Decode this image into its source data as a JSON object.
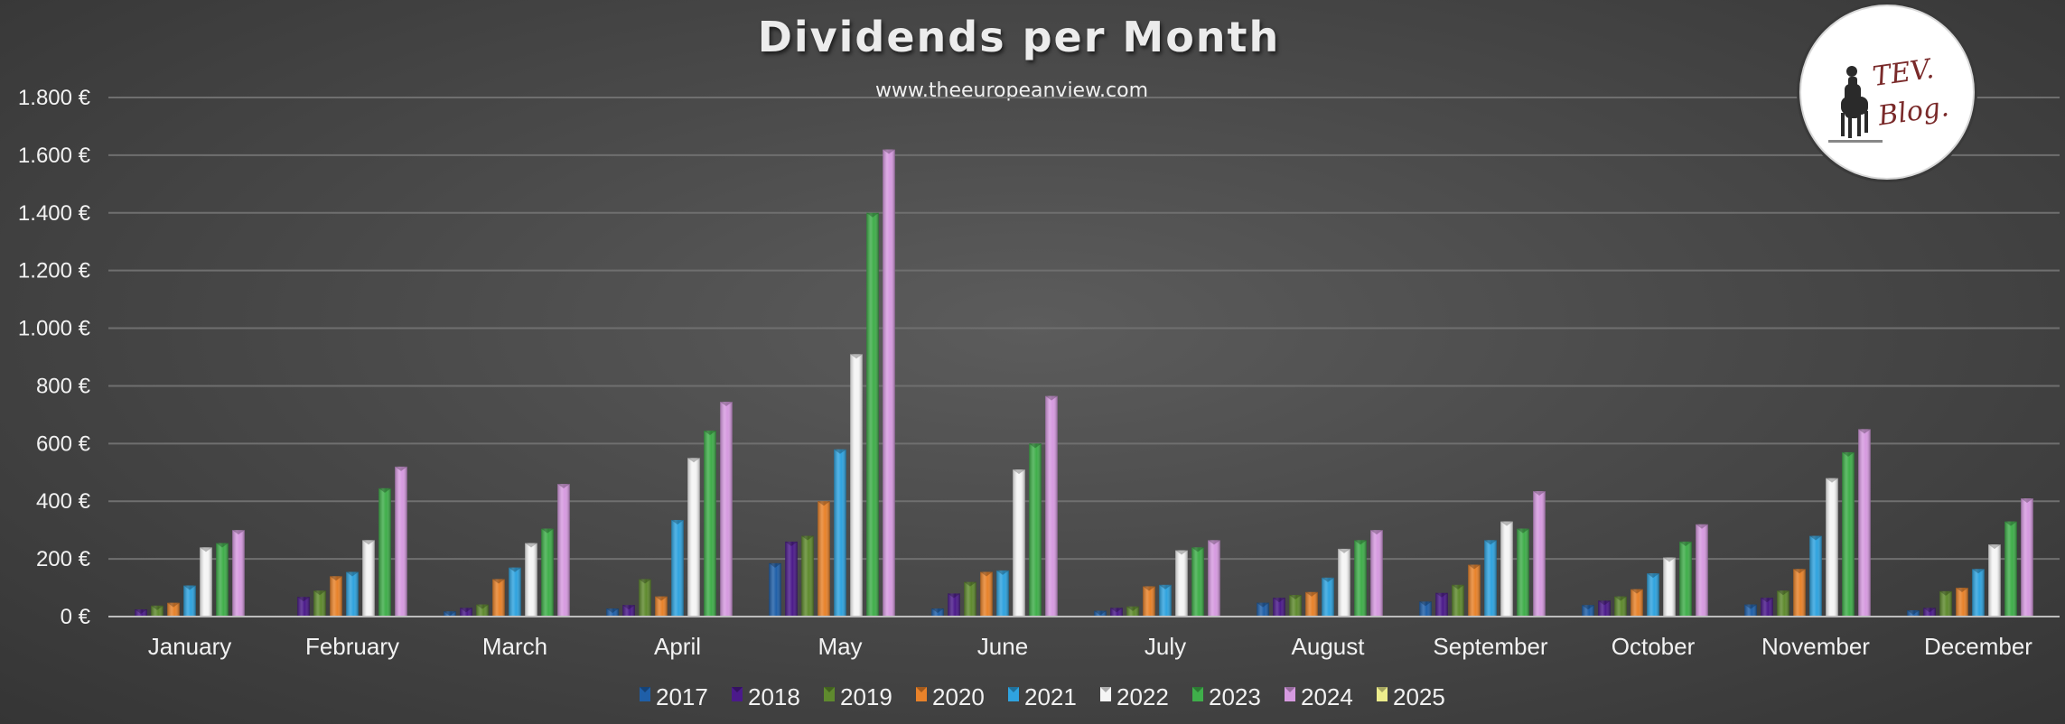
{
  "chart_data": {
    "type": "bar",
    "title": "Dividends per Month",
    "subtitle": "www.theeuropeanview.com",
    "xlabel": "",
    "ylabel": "",
    "ylim": [
      0,
      1800
    ],
    "yticks": [
      0,
      200,
      400,
      600,
      800,
      1000,
      1200,
      1400,
      1600,
      1800
    ],
    "ytick_labels": [
      "0 €",
      "200 €",
      "400 €",
      "600 €",
      "800 €",
      "1.000 €",
      "1.200 €",
      "1.400 €",
      "1.600 €",
      "1.800 €"
    ],
    "grid": true,
    "legend_position": "bottom",
    "categories": [
      "January",
      "February",
      "March",
      "April",
      "May",
      "June",
      "July",
      "August",
      "September",
      "October",
      "November",
      "December"
    ],
    "series": [
      {
        "name": "2017",
        "color": "#1f5fa8",
        "values": [
          0,
          0,
          18,
          28,
          185,
          28,
          20,
          48,
          52,
          40,
          42,
          22
        ]
      },
      {
        "name": "2018",
        "color": "#4b1a8a",
        "values": [
          25,
          68,
          30,
          40,
          260,
          80,
          30,
          65,
          82,
          55,
          65,
          30
        ]
      },
      {
        "name": "2019",
        "color": "#5f8a2e",
        "values": [
          38,
          90,
          42,
          130,
          280,
          120,
          35,
          75,
          110,
          70,
          90,
          88
        ]
      },
      {
        "name": "2020",
        "color": "#e8822a",
        "values": [
          48,
          140,
          130,
          70,
          400,
          155,
          105,
          85,
          180,
          95,
          165,
          100
        ]
      },
      {
        "name": "2021",
        "color": "#2fa3df",
        "values": [
          108,
          155,
          170,
          335,
          580,
          160,
          110,
          135,
          265,
          150,
          280,
          165
        ]
      },
      {
        "name": "2022",
        "color": "#f5f5f5",
        "values": [
          240,
          265,
          255,
          550,
          910,
          510,
          230,
          235,
          330,
          205,
          480,
          250
        ]
      },
      {
        "name": "2023",
        "color": "#3fae4a",
        "values": [
          255,
          445,
          305,
          645,
          1400,
          600,
          240,
          265,
          305,
          260,
          570,
          330
        ]
      },
      {
        "name": "2024",
        "color": "#d69ae0",
        "values": [
          300,
          520,
          460,
          745,
          1620,
          765,
          265,
          300,
          435,
          320,
          650,
          410
        ]
      },
      {
        "name": "2025",
        "color": "#ecec8c",
        "values": [
          0,
          0,
          0,
          0,
          0,
          0,
          0,
          0,
          0,
          0,
          0,
          0
        ]
      }
    ]
  },
  "logo": {
    "text": "TEV.\nBlog."
  }
}
